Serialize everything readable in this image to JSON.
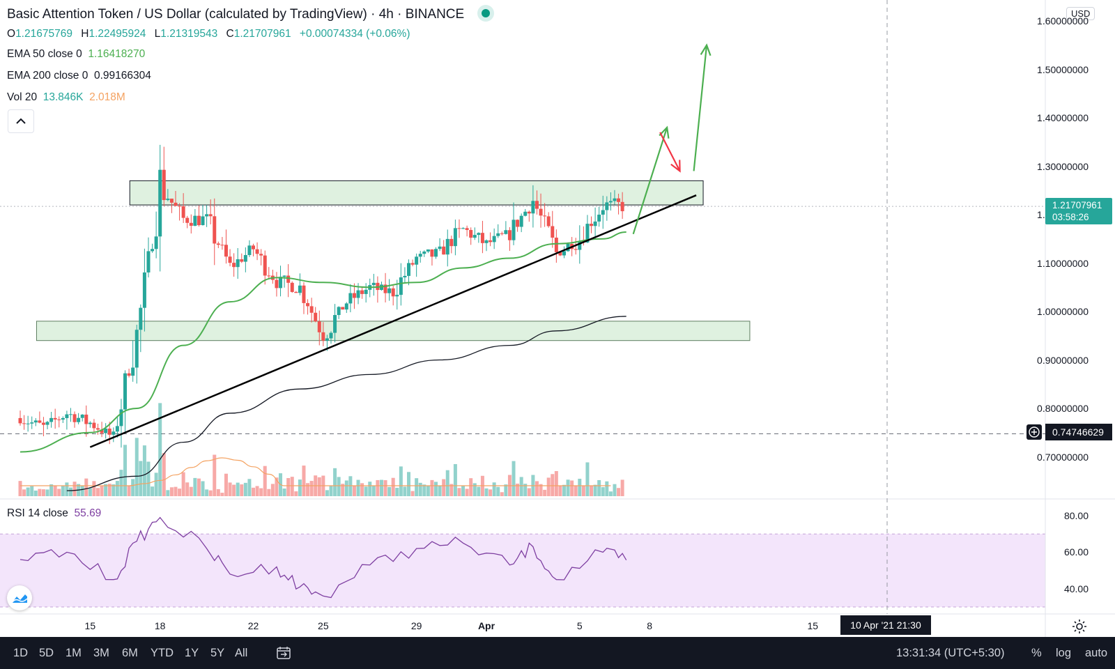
{
  "header": {
    "title": "Basic Attention Token / US Dollar (calculated by TradingView)",
    "interval": "4h",
    "exchange": "BINANCE",
    "status_color": "#089981",
    "ohlc": {
      "o_label": "O",
      "o": "1.21675769",
      "h_label": "H",
      "h": "1.22495924",
      "l_label": "L",
      "l": "1.21319543",
      "c_label": "C",
      "c": "1.21707961",
      "change": "+0.00074334 (+0.06%)"
    },
    "ema50": {
      "label": "EMA 50 close 0",
      "value": "1.16418270",
      "color": "#4caf50"
    },
    "ema200": {
      "label": "EMA 200 close 0",
      "value": "0.99166304",
      "color": "#131722"
    },
    "vol": {
      "label": "Vol 20",
      "value1": "13.846K",
      "value2": "2.018M"
    },
    "collapse_icon": "chevron-up-icon"
  },
  "price_axis": {
    "currency": "USD",
    "ticks": [
      "1.60000000",
      "1.50000000",
      "1.40000000",
      "1.30000000",
      "1.20000000",
      "1.10000000",
      "1.00000000",
      "0.90000000",
      "0.80000000",
      "0.70000000"
    ],
    "last_price": "1.21707961",
    "countdown": "03:58:26",
    "crosshair_price": "0.74746629"
  },
  "time_axis": {
    "ticks": [
      "15",
      "18",
      "22",
      "25",
      "29",
      "Apr",
      "5",
      "8",
      "15"
    ],
    "crosshair_label": "10 Apr '21  21:30"
  },
  "rsi": {
    "label": "RSI 14 close",
    "value": "55.69",
    "ticks": [
      "80.00",
      "60.00",
      "40.00"
    ],
    "band": [
      30,
      70
    ],
    "color": "#7e3fa1"
  },
  "toolbar": {
    "timeframes": [
      "1D",
      "5D",
      "1M",
      "3M",
      "6M",
      "YTD",
      "1Y",
      "5Y",
      "All"
    ],
    "time": "13:31:34 (UTC+5:30)",
    "percent": "%",
    "log": "log",
    "auto": "auto"
  },
  "chart_data": {
    "type": "candlestick",
    "symbol": "BATUSD",
    "interval": "4h",
    "ylim": [
      0.65,
      1.65
    ],
    "x_range": [
      "Mar 12",
      "Apr 17"
    ],
    "x_ticks": [
      "15",
      "18",
      "22",
      "25",
      "29",
      "Apr",
      "5",
      "8",
      "15"
    ],
    "close_path": [
      {
        "x": "Mar 12",
        "y": 0.78
      },
      {
        "x": "Mar 13",
        "y": 0.76
      },
      {
        "x": "Mar 14",
        "y": 0.79
      },
      {
        "x": "Mar 15",
        "y": 0.77
      },
      {
        "x": "Mar 16",
        "y": 0.74
      },
      {
        "x": "Mar 17",
        "y": 0.95
      },
      {
        "x": "Mar 18",
        "y": 1.26
      },
      {
        "x": "Mar 19",
        "y": 1.19
      },
      {
        "x": "Mar 20",
        "y": 1.19
      },
      {
        "x": "Mar 21",
        "y": 1.09
      },
      {
        "x": "Mar 22",
        "y": 1.13
      },
      {
        "x": "Mar 23",
        "y": 1.06
      },
      {
        "x": "Mar 24",
        "y": 1.05
      },
      {
        "x": "Mar 25",
        "y": 0.95
      },
      {
        "x": "Mar 26",
        "y": 1.02
      },
      {
        "x": "Mar 27",
        "y": 1.05
      },
      {
        "x": "Mar 28",
        "y": 1.04
      },
      {
        "x": "Mar 29",
        "y": 1.11
      },
      {
        "x": "Mar 30",
        "y": 1.12
      },
      {
        "x": "Mar 31",
        "y": 1.17
      },
      {
        "x": "Apr 1",
        "y": 1.14
      },
      {
        "x": "Apr 2",
        "y": 1.16
      },
      {
        "x": "Apr 3",
        "y": 1.23
      },
      {
        "x": "Apr 4",
        "y": 1.12
      },
      {
        "x": "Apr 5",
        "y": 1.15
      },
      {
        "x": "Apr 6",
        "y": 1.22
      },
      {
        "x": "Apr 7",
        "y": 1.217
      }
    ],
    "ema50_path": [
      {
        "x": "Mar 12",
        "y": 0.71
      },
      {
        "x": "Mar 15",
        "y": 0.75
      },
      {
        "x": "Mar 17",
        "y": 0.8
      },
      {
        "x": "Mar 19",
        "y": 0.93
      },
      {
        "x": "Mar 21",
        "y": 1.02
      },
      {
        "x": "Mar 23",
        "y": 1.07
      },
      {
        "x": "Mar 25",
        "y": 1.06
      },
      {
        "x": "Mar 27",
        "y": 1.05
      },
      {
        "x": "Mar 29",
        "y": 1.06
      },
      {
        "x": "Mar 31",
        "y": 1.09
      },
      {
        "x": "Apr 2",
        "y": 1.11
      },
      {
        "x": "Apr 4",
        "y": 1.14
      },
      {
        "x": "Apr 6",
        "y": 1.15
      },
      {
        "x": "Apr 7",
        "y": 1.164
      }
    ],
    "ema200_path": [
      {
        "x": "Mar 14",
        "y": 0.63
      },
      {
        "x": "Mar 17",
        "y": 0.66
      },
      {
        "x": "Mar 19",
        "y": 0.73
      },
      {
        "x": "Mar 21",
        "y": 0.79
      },
      {
        "x": "Mar 24",
        "y": 0.84
      },
      {
        "x": "Mar 27",
        "y": 0.87
      },
      {
        "x": "Mar 30",
        "y": 0.9
      },
      {
        "x": "Apr 2",
        "y": 0.93
      },
      {
        "x": "Apr 4",
        "y": 0.96
      },
      {
        "x": "Apr 7",
        "y": 0.99
      }
    ],
    "zones": [
      {
        "from": "Mar 17",
        "to": "Apr 10",
        "low": 1.22,
        "high": 1.27
      },
      {
        "from": "Mar 13",
        "to": "Apr 12",
        "low": 0.94,
        "high": 0.98
      }
    ],
    "trendline": [
      {
        "x": "Mar 15",
        "y": 0.72
      },
      {
        "x": "Apr 10",
        "y": 1.24
      }
    ],
    "projection_arrows": [
      {
        "from": {
          "x": "Apr 7",
          "y": 1.16
        },
        "to": {
          "x": "Apr 8",
          "y": 1.38
        },
        "color": "#4caf50"
      },
      {
        "from": {
          "x": "Apr 8",
          "y": 1.37
        },
        "to": {
          "x": "Apr 9",
          "y": 1.29
        },
        "color": "#f23645"
      },
      {
        "from": {
          "x": "Apr 9",
          "y": 1.29
        },
        "to": {
          "x": "Apr 10",
          "y": 1.55
        },
        "color": "#4caf50"
      }
    ],
    "up_color": "#26a69a",
    "down_color": "#ef5350",
    "rsi_path": [
      {
        "x": "Mar 12",
        "y": 56
      },
      {
        "x": "Mar 14",
        "y": 60
      },
      {
        "x": "Mar 16",
        "y": 45
      },
      {
        "x": "Mar 17",
        "y": 66
      },
      {
        "x": "Mar 18",
        "y": 79
      },
      {
        "x": "Mar 20",
        "y": 62
      },
      {
        "x": "Mar 21",
        "y": 48
      },
      {
        "x": "Mar 23",
        "y": 52
      },
      {
        "x": "Mar 24",
        "y": 41
      },
      {
        "x": "Mar 25",
        "y": 36
      },
      {
        "x": "Mar 27",
        "y": 53
      },
      {
        "x": "Mar 29",
        "y": 62
      },
      {
        "x": "Mar 31",
        "y": 65
      },
      {
        "x": "Apr 2",
        "y": 53
      },
      {
        "x": "Apr 3",
        "y": 63
      },
      {
        "x": "Apr 4",
        "y": 45
      },
      {
        "x": "Apr 6",
        "y": 60
      },
      {
        "x": "Apr 7",
        "y": 55.69
      }
    ]
  }
}
